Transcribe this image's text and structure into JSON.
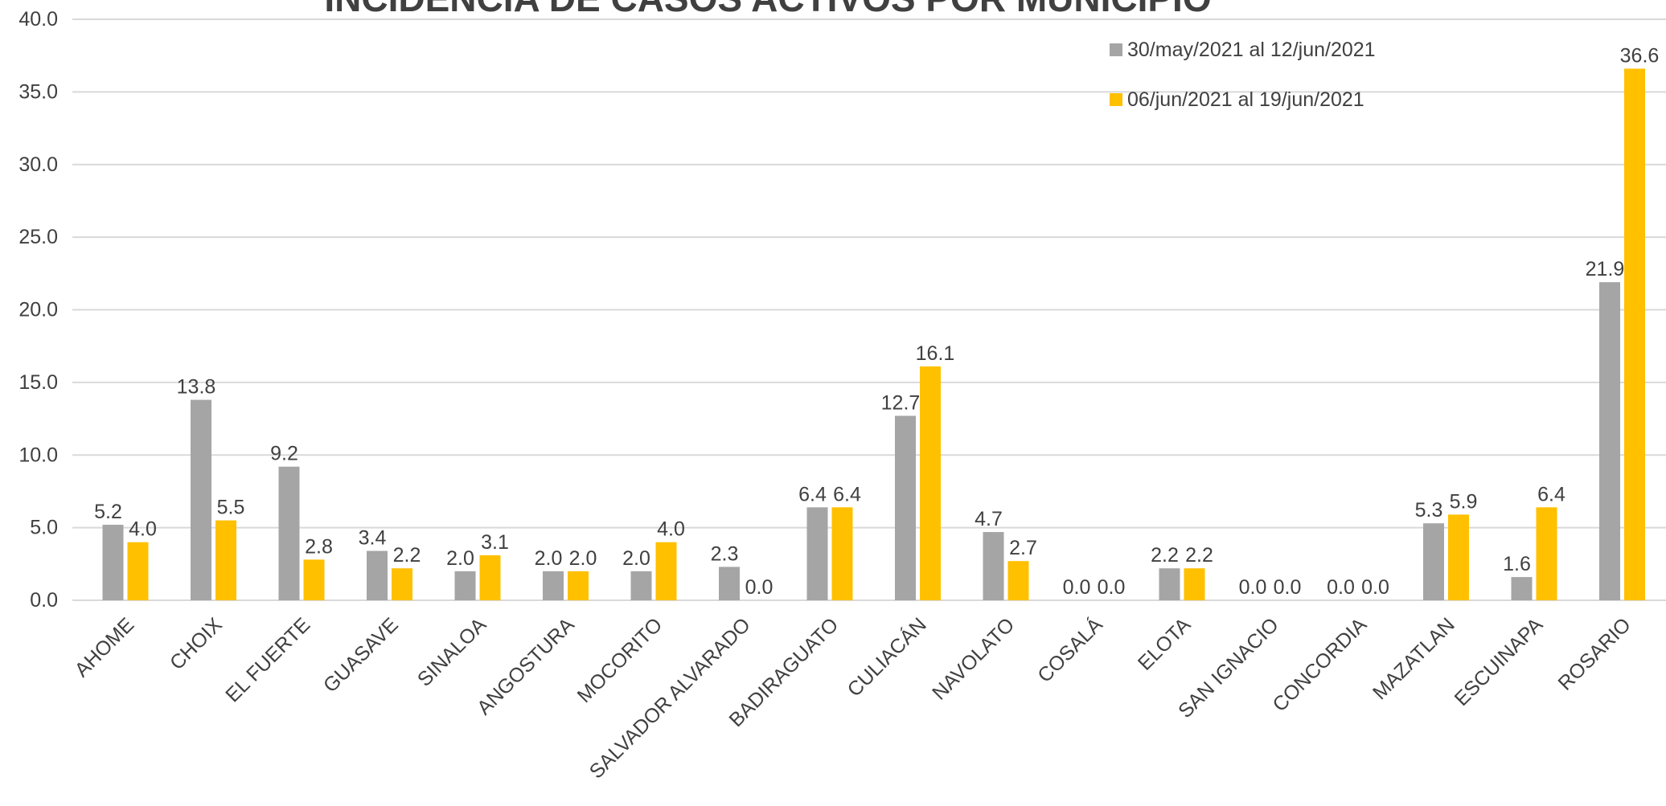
{
  "chart_data": {
    "type": "bar",
    "title": "INCIDENCIA DE CASOS ACTIVOS POR MUNICIPIO",
    "xlabel": "",
    "ylabel": "",
    "ylim": [
      0,
      40
    ],
    "yticks": [
      "0.0",
      "5.0",
      "10.0",
      "15.0",
      "20.0",
      "25.0",
      "30.0",
      "35.0",
      "40.0"
    ],
    "grid": true,
    "legend_position": "top-right",
    "categories": [
      "AHOME",
      "CHOIX",
      "EL FUERTE",
      "GUASAVE",
      "SINALOA",
      "ANGOSTURA",
      "MOCORITO",
      "SALVADOR ALVARADO",
      "BADIRAGUATO",
      "CULIACÁN",
      "NAVOLATO",
      "COSALÁ",
      "ELOTA",
      "SAN IGNACIO",
      "CONCORDIA",
      "MAZATLAN",
      "ESCUINAPA",
      "ROSARIO"
    ],
    "series": [
      {
        "name": "30/may/2021 al  12/jun/2021",
        "color": "#a5a5a5",
        "values": [
          5.2,
          13.8,
          9.2,
          3.4,
          2.0,
          2.0,
          2.0,
          2.3,
          6.4,
          12.7,
          4.7,
          0.0,
          2.2,
          0.0,
          0.0,
          5.3,
          1.6,
          21.9
        ],
        "labels": [
          "5.2",
          "13.8",
          "9.2",
          "3.4",
          "2.0",
          "2.0",
          "2.0",
          "2.3",
          "6.4",
          "12.7",
          "4.7",
          "0.0",
          "2.2",
          "0.0",
          "0.0",
          "5.3",
          "1.6",
          "21.9"
        ]
      },
      {
        "name": "06/jun/2021 al  19/jun/2021",
        "color": "#ffc000",
        "values": [
          4.0,
          5.5,
          2.8,
          2.2,
          3.1,
          2.0,
          4.0,
          0.0,
          6.4,
          16.1,
          2.7,
          0.0,
          2.2,
          0.0,
          0.0,
          5.9,
          6.4,
          36.6
        ],
        "labels": [
          "4.0",
          "5.5",
          "2.8",
          "2.2",
          "3.1",
          "2.0",
          "4.0",
          "0.0",
          "6.4",
          "16.1",
          "2.7",
          "0.0",
          "2.2",
          "0.0",
          "0.0",
          "5.9",
          "6.4",
          "36.6"
        ]
      }
    ]
  }
}
